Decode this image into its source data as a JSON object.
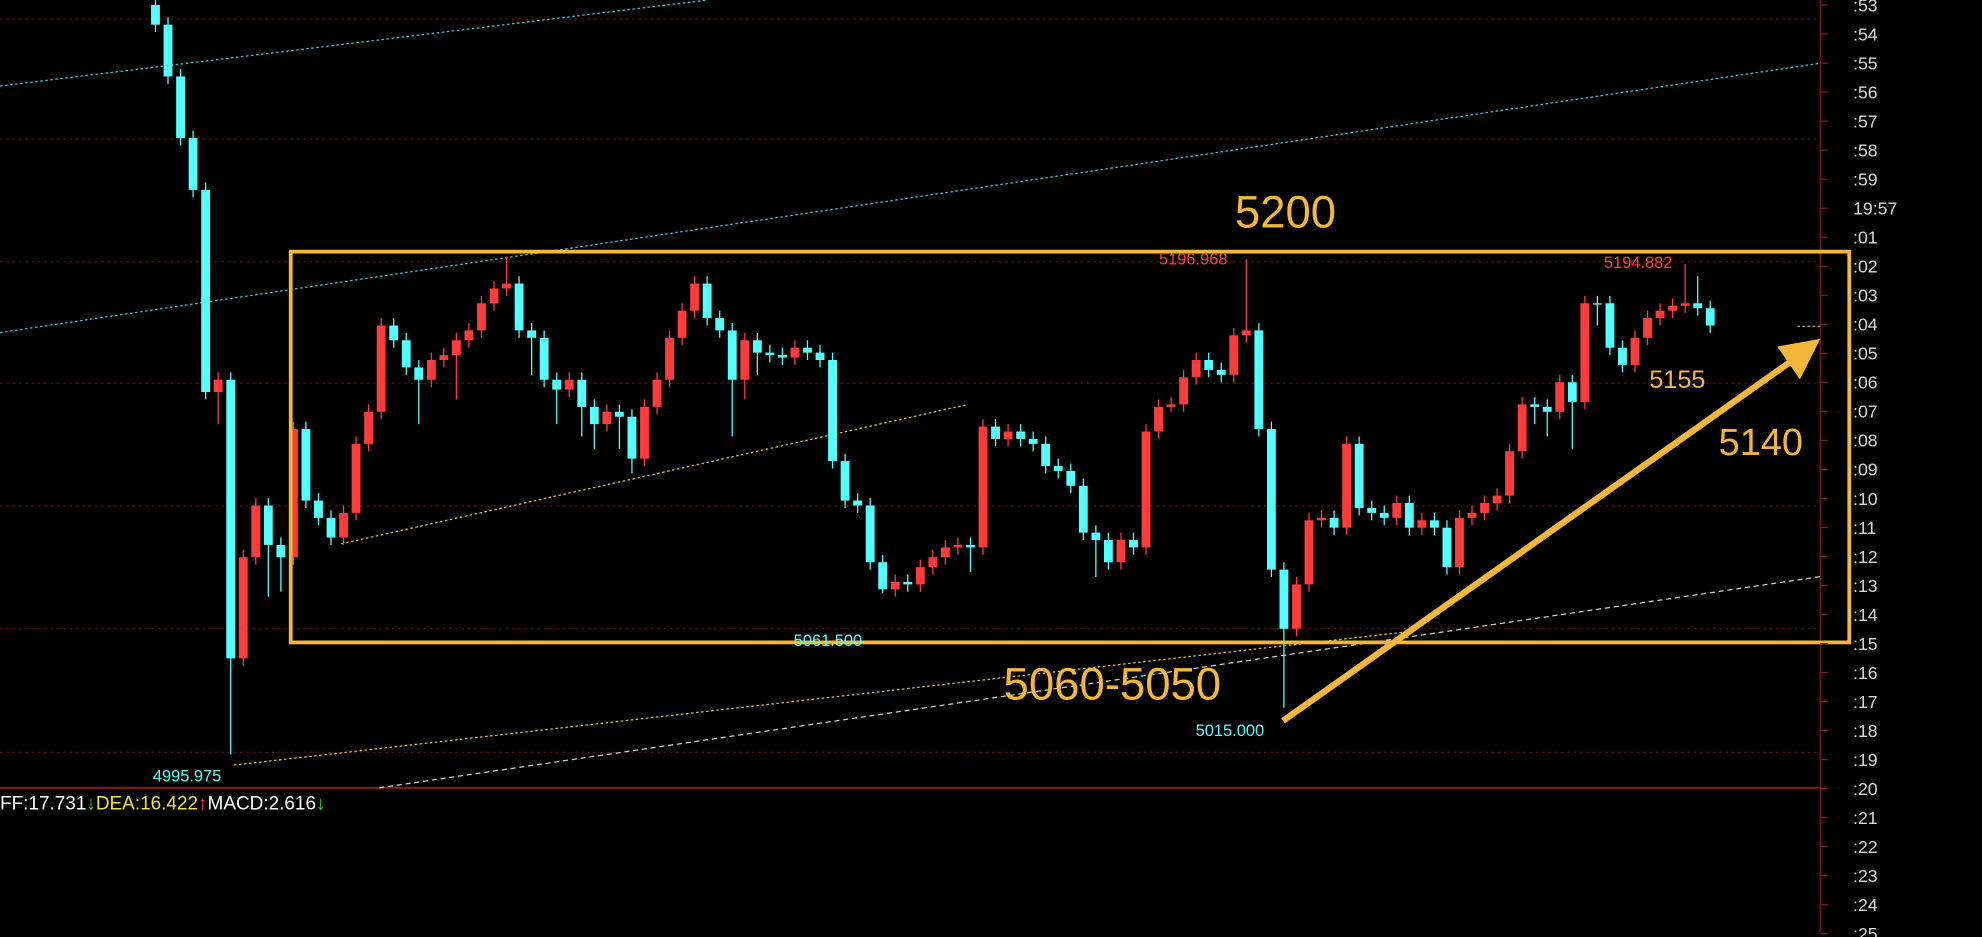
{
  "chart_data": {
    "type": "candlestick",
    "ylim": [
      4982.5,
      5302
    ],
    "up_color": "#ff3b3b",
    "down_color": "#54ffff",
    "ohlc": [
      [
        5300,
        5303,
        5289,
        5292
      ],
      [
        5292,
        5295,
        5268,
        5271
      ],
      [
        5271,
        5274,
        5243,
        5246
      ],
      [
        5246,
        5249,
        5222,
        5225
      ],
      [
        5225,
        5228,
        5140,
        5143
      ],
      [
        5143,
        5151,
        5130,
        5148
      ],
      [
        5148,
        5151,
        4996,
        5035
      ],
      [
        5035,
        5079,
        5032,
        5076
      ],
      [
        5076,
        5100,
        5073,
        5097
      ],
      [
        5097,
        5100,
        5060,
        5081
      ],
      [
        5081,
        5084,
        5062,
        5076
      ],
      [
        5076,
        5131,
        5073,
        5128
      ],
      [
        5128,
        5131,
        5096,
        5099
      ],
      [
        5099,
        5102,
        5089,
        5092
      ],
      [
        5092,
        5095,
        5081,
        5084
      ],
      [
        5084,
        5097,
        5081,
        5094
      ],
      [
        5094,
        5125,
        5091,
        5122
      ],
      [
        5122,
        5138,
        5119,
        5135
      ],
      [
        5135,
        5173,
        5132,
        5170
      ],
      [
        5170,
        5173,
        5161,
        5164
      ],
      [
        5164,
        5167,
        5150,
        5153
      ],
      [
        5153,
        5156,
        5130,
        5148
      ],
      [
        5148,
        5159,
        5145,
        5156
      ],
      [
        5156,
        5161,
        5153,
        5158
      ],
      [
        5158,
        5167,
        5140,
        5164
      ],
      [
        5164,
        5171,
        5161,
        5168
      ],
      [
        5168,
        5182,
        5165,
        5179
      ],
      [
        5179,
        5188,
        5176,
        5185
      ],
      [
        5185,
        5198,
        5182,
        5187
      ],
      [
        5187,
        5190,
        5165,
        5168
      ],
      [
        5168,
        5171,
        5150,
        5165
      ],
      [
        5165,
        5168,
        5145,
        5148
      ],
      [
        5148,
        5151,
        5130,
        5144
      ],
      [
        5144,
        5151,
        5141,
        5148
      ],
      [
        5148,
        5151,
        5125,
        5137
      ],
      [
        5137,
        5140,
        5120,
        5130
      ],
      [
        5130,
        5138,
        5127,
        5135
      ],
      [
        5135,
        5138,
        5120,
        5133
      ],
      [
        5133,
        5136,
        5110,
        5116
      ],
      [
        5116,
        5140,
        5113,
        5137
      ],
      [
        5137,
        5151,
        5134,
        5148
      ],
      [
        5148,
        5168,
        5145,
        5165
      ],
      [
        5165,
        5179,
        5162,
        5176
      ],
      [
        5176,
        5190,
        5173,
        5187
      ],
      [
        5187,
        5190,
        5170,
        5173
      ],
      [
        5173,
        5176,
        5165,
        5168
      ],
      [
        5168,
        5171,
        5125,
        5148
      ],
      [
        5148,
        5167,
        5140,
        5164
      ],
      [
        5164,
        5167,
        5150,
        5159
      ],
      [
        5159,
        5162,
        5155,
        5158
      ],
      [
        5158,
        5161,
        5154,
        5157
      ],
      [
        5157,
        5164,
        5154,
        5161
      ],
      [
        5161,
        5164,
        5156,
        5159
      ],
      [
        5159,
        5162,
        5153,
        5156
      ],
      [
        5156,
        5159,
        5112,
        5115
      ],
      [
        5115,
        5118,
        5096,
        5099
      ],
      [
        5099,
        5102,
        5094,
        5097
      ],
      [
        5097,
        5100,
        5071,
        5074
      ],
      [
        5074,
        5077,
        5061.5,
        5063
      ],
      [
        5063,
        5069,
        5060,
        5066
      ],
      [
        5066,
        5069,
        5062,
        5065
      ],
      [
        5065,
        5075,
        5062,
        5072
      ],
      [
        5072,
        5079,
        5069,
        5076
      ],
      [
        5076,
        5083,
        5073,
        5080
      ],
      [
        5080,
        5084,
        5077,
        5081
      ],
      [
        5081,
        5084,
        5070,
        5080
      ],
      [
        5080,
        5132,
        5077,
        5129
      ],
      [
        5129,
        5132,
        5121,
        5124
      ],
      [
        5124,
        5130,
        5121,
        5127
      ],
      [
        5127,
        5130,
        5121,
        5124
      ],
      [
        5124,
        5127,
        5119,
        5122
      ],
      [
        5122,
        5125,
        5110,
        5113
      ],
      [
        5113,
        5116,
        5108,
        5111
      ],
      [
        5111,
        5114,
        5102,
        5105
      ],
      [
        5105,
        5108,
        5083,
        5086
      ],
      [
        5086,
        5089,
        5068,
        5083
      ],
      [
        5083,
        5086,
        5071,
        5074
      ],
      [
        5074,
        5086,
        5071,
        5083
      ],
      [
        5083,
        5086,
        5077,
        5080
      ],
      [
        5080,
        5130,
        5077,
        5127
      ],
      [
        5127,
        5140,
        5124,
        5137
      ],
      [
        5137,
        5141,
        5135,
        5138
      ],
      [
        5138,
        5152,
        5135,
        5149
      ],
      [
        5149,
        5159,
        5146,
        5156
      ],
      [
        5156,
        5159,
        5149,
        5152
      ],
      [
        5152,
        5155,
        5147,
        5150
      ],
      [
        5150,
        5169,
        5147,
        5166
      ],
      [
        5166,
        5197,
        5163,
        5168
      ],
      [
        5168,
        5171,
        5125,
        5128
      ],
      [
        5128,
        5131,
        5068,
        5071
      ],
      [
        5071,
        5074,
        5015,
        5047
      ],
      [
        5047,
        5068,
        5044,
        5065
      ],
      [
        5065,
        5094,
        5062,
        5091
      ],
      [
        5091,
        5095,
        5088,
        5092
      ],
      [
        5092,
        5095,
        5085,
        5088
      ],
      [
        5088,
        5125,
        5085,
        5122
      ],
      [
        5122,
        5125,
        5093,
        5096
      ],
      [
        5096,
        5099,
        5091,
        5094
      ],
      [
        5094,
        5097,
        5089,
        5092
      ],
      [
        5092,
        5101,
        5089,
        5098
      ],
      [
        5098,
        5101,
        5085,
        5088
      ],
      [
        5088,
        5094,
        5085,
        5091
      ],
      [
        5091,
        5094,
        5085,
        5088
      ],
      [
        5088,
        5091,
        5069,
        5072
      ],
      [
        5072,
        5095,
        5069,
        5092
      ],
      [
        5092,
        5097,
        5089,
        5094
      ],
      [
        5094,
        5101,
        5091,
        5098
      ],
      [
        5098,
        5104,
        5095,
        5101
      ],
      [
        5101,
        5122,
        5098,
        5119
      ],
      [
        5119,
        5141,
        5116,
        5138
      ],
      [
        5138,
        5141,
        5130,
        5137
      ],
      [
        5137,
        5140,
        5125,
        5135
      ],
      [
        5135,
        5150,
        5132,
        5147
      ],
      [
        5147,
        5150,
        5120,
        5139
      ],
      [
        5139,
        5182,
        5136,
        5179
      ],
      [
        5179,
        5182,
        5170,
        5179
      ],
      [
        5179,
        5182,
        5158,
        5161
      ],
      [
        5161,
        5164,
        5151,
        5154
      ],
      [
        5154,
        5168,
        5151,
        5165
      ],
      [
        5165,
        5176,
        5162,
        5173
      ],
      [
        5173,
        5179,
        5170,
        5176
      ],
      [
        5176,
        5181,
        5173,
        5178
      ],
      [
        5178,
        5195,
        5175,
        5179
      ],
      [
        5179,
        5190,
        5174,
        5177
      ],
      [
        5177,
        5180,
        5167,
        5170
      ]
    ],
    "axis_labels": [
      ":53",
      ":54",
      ":55",
      ":56",
      ":57",
      ":58",
      ":59",
      "19:57",
      ":01",
      ":02",
      ":03",
      ":04",
      ":05",
      ":06",
      ":07",
      ":08",
      ":09",
      ":10",
      ":11",
      ":12",
      ":13",
      ":14",
      ":15",
      ":16",
      ":17",
      ":18",
      ":19",
      ":20",
      ":21",
      ":22",
      ":23",
      ":24",
      ":25"
    ],
    "annotations": {
      "resistance": "5200",
      "support": "5060-5050",
      "ma_level": "5155",
      "trend_level": "5140"
    },
    "point_labels": {
      "high_1": "5196.968",
      "high_2": "5194.882",
      "low_1": "5061.500",
      "low_2": "5015.000",
      "low_3": "4995.975"
    },
    "indicator_label": [
      "FF:17.731",
      "↓",
      "DEA:16.422",
      "↑",
      "MACD:2.616",
      "↓"
    ]
  }
}
